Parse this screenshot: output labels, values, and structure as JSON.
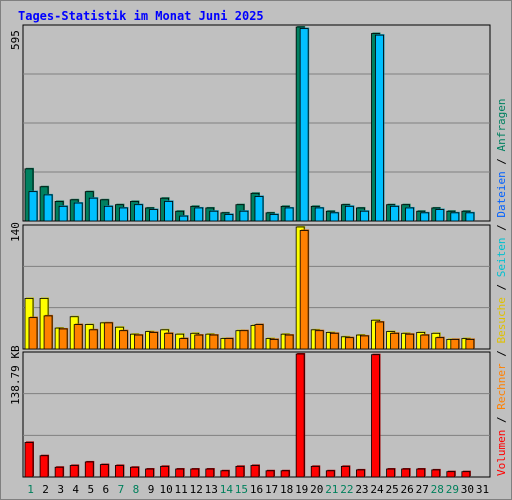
{
  "title": "Tages-Statistik im Monat Juni 2025",
  "colors": {
    "background": "#c0c0c0",
    "panel": "#c0c0c0",
    "title": "#0000ff",
    "anfragen": "#008060",
    "dateien": "#00c0ff",
    "seiten": "#00e0e0",
    "besuche": "#ffff00",
    "rechner": "#ff8000",
    "volumen": "#ff0000",
    "grid": "#000000",
    "weekday_label": "#000000",
    "weekend_label": "#00805c",
    "separator": "#000000"
  },
  "right_legend": {
    "volumen": "Volumen",
    "rechner": "Rechner",
    "besuche": "Besuche",
    "seiten": "Seiten",
    "dateien": "Dateien",
    "anfragen": "Anfragen",
    "separator": "/"
  },
  "chart_data": [
    {
      "type": "bar",
      "panel": "top",
      "scale_label": "595",
      "ylim": [
        0,
        595
      ],
      "grid": true,
      "categories": [
        "1",
        "2",
        "3",
        "4",
        "5",
        "6",
        "7",
        "8",
        "9",
        "10",
        "11",
        "12",
        "13",
        "14",
        "15",
        "16",
        "17",
        "18",
        "19",
        "20",
        "21",
        "22",
        "23",
        "24",
        "25",
        "26",
        "27",
        "28",
        "29",
        "30",
        "31"
      ],
      "series": [
        {
          "name": "Anfragen",
          "values": [
            160,
            105,
            60,
            65,
            90,
            65,
            50,
            60,
            40,
            70,
            30,
            45,
            40,
            25,
            50,
            85,
            25,
            45,
            595,
            45,
            30,
            50,
            40,
            575,
            50,
            50,
            30,
            40,
            30,
            30,
            0
          ]
        },
        {
          "name": "Dateien",
          "values": [
            90,
            80,
            45,
            55,
            70,
            45,
            40,
            50,
            35,
            60,
            15,
            40,
            30,
            20,
            30,
            75,
            20,
            40,
            590,
            40,
            25,
            45,
            30,
            570,
            45,
            40,
            25,
            35,
            25,
            25,
            0
          ]
        }
      ]
    },
    {
      "type": "bar",
      "panel": "middle",
      "scale_label": "140",
      "ylim": [
        0,
        140
      ],
      "grid": true,
      "categories": [
        "1",
        "2",
        "3",
        "4",
        "5",
        "6",
        "7",
        "8",
        "9",
        "10",
        "11",
        "12",
        "13",
        "14",
        "15",
        "16",
        "17",
        "18",
        "19",
        "20",
        "21",
        "22",
        "23",
        "24",
        "25",
        "26",
        "27",
        "28",
        "29",
        "30",
        "31"
      ],
      "series": [
        {
          "name": "Besuche",
          "values": [
            58,
            58,
            24,
            37,
            28,
            30,
            25,
            17,
            20,
            22,
            17,
            18,
            17,
            12,
            21,
            27,
            12,
            17,
            140,
            22,
            19,
            14,
            16,
            33,
            20,
            18,
            19,
            18,
            11,
            12,
            0
          ]
        },
        {
          "name": "Rechner",
          "values": [
            36,
            38,
            23,
            28,
            22,
            30,
            21,
            16,
            19,
            18,
            12,
            16,
            16,
            12,
            21,
            28,
            11,
            16,
            136,
            21,
            18,
            13,
            15,
            31,
            18,
            17,
            16,
            13,
            11,
            11,
            0
          ]
        }
      ]
    },
    {
      "type": "bar",
      "panel": "bottom",
      "scale_label": "138.79 KB",
      "ylim": [
        0,
        138.79
      ],
      "grid": true,
      "categories": [
        "1",
        "2",
        "3",
        "4",
        "5",
        "6",
        "7",
        "8",
        "9",
        "10",
        "11",
        "12",
        "13",
        "14",
        "15",
        "16",
        "17",
        "18",
        "19",
        "20",
        "21",
        "22",
        "23",
        "24",
        "25",
        "26",
        "27",
        "28",
        "29",
        "30",
        "31"
      ],
      "series": [
        {
          "name": "Volumen",
          "values": [
            39,
            24,
            11,
            13,
            17,
            14,
            13,
            11,
            9,
            12,
            9,
            9,
            9,
            7,
            12,
            13,
            7,
            7,
            138.79,
            12,
            7,
            12,
            8,
            138,
            9,
            9,
            9,
            8,
            6,
            6,
            0
          ]
        }
      ]
    }
  ],
  "weekend_days": [
    "1",
    "7",
    "8",
    "14",
    "15",
    "21",
    "22",
    "28",
    "29"
  ]
}
